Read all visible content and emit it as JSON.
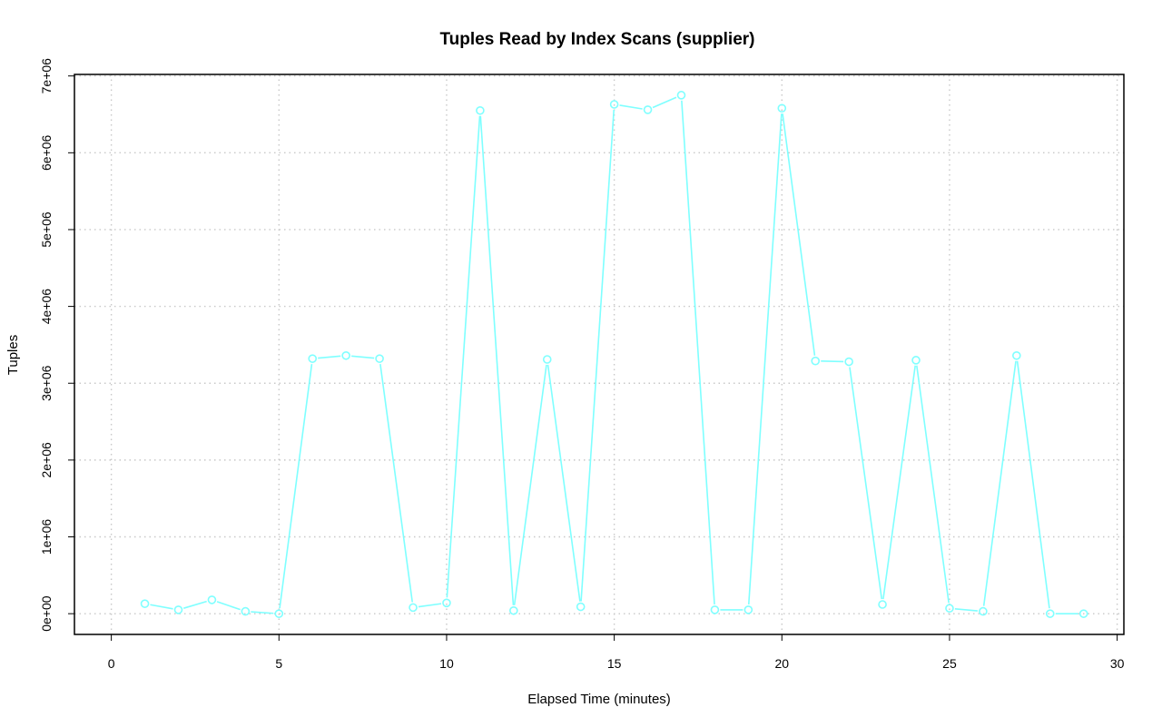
{
  "chart_data": {
    "type": "line",
    "title": "Tuples Read by Index Scans (supplier)",
    "xlabel": "Elapsed Time (minutes)",
    "ylabel": "Tuples",
    "xlim": [
      -1.1,
      30.2
    ],
    "ylim": [
      -270000,
      7020000
    ],
    "x_ticks": [
      0,
      5,
      10,
      15,
      20,
      25,
      30
    ],
    "x_tick_labels": [
      "0",
      "5",
      "10",
      "15",
      "20",
      "25",
      "30"
    ],
    "y_ticks": [
      0,
      1000000,
      2000000,
      3000000,
      4000000,
      5000000,
      6000000,
      7000000
    ],
    "y_tick_labels": [
      "0e+00",
      "1e+06",
      "2e+06",
      "3e+06",
      "4e+06",
      "5e+06",
      "6e+06",
      "7e+06"
    ],
    "grid": true,
    "series": [
      {
        "color": "#7fffff",
        "marker": "open-circle",
        "x": [
          1,
          2,
          3,
          4,
          5,
          6,
          7,
          8,
          9,
          10,
          11,
          12,
          13,
          14,
          15,
          16,
          17,
          18,
          19,
          20,
          21,
          22,
          23,
          24,
          25,
          26,
          27,
          28,
          29
        ],
        "y": [
          130000,
          50000,
          180000,
          30000,
          0,
          3320000,
          3360000,
          3320000,
          80000,
          140000,
          6550000,
          40000,
          3310000,
          90000,
          6630000,
          6560000,
          6750000,
          50000,
          50000,
          6580000,
          3290000,
          3280000,
          120000,
          3300000,
          70000,
          30000,
          3360000,
          0,
          0
        ]
      }
    ]
  }
}
